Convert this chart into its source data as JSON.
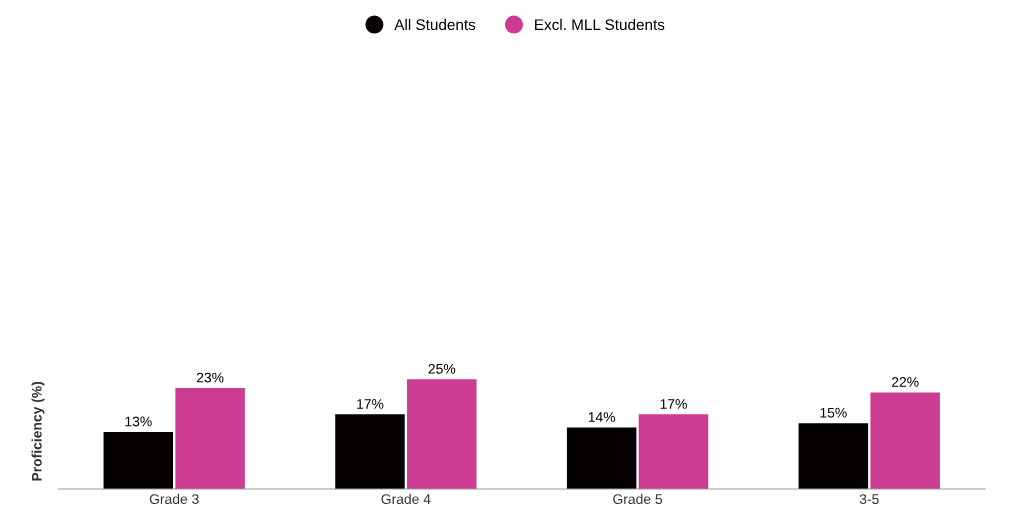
{
  "chart_data": {
    "type": "bar",
    "ylabel": "Proficiency (%)",
    "categories": [
      "Grade 3",
      "Grade 4",
      "Grade 5",
      "3-5"
    ],
    "series": [
      {
        "name": "All Students",
        "color": "#050102",
        "values": [
          13,
          17,
          14,
          15
        ],
        "value_labels": [
          "13%",
          "17%",
          "14%",
          "15%"
        ]
      },
      {
        "name": "Excl. MLL Students",
        "color": "#cc3c93",
        "values": [
          23,
          25,
          17,
          22
        ],
        "value_labels": [
          "23%",
          "25%",
          "17%",
          "22%"
        ]
      }
    ],
    "grid": false,
    "legend": "top"
  }
}
